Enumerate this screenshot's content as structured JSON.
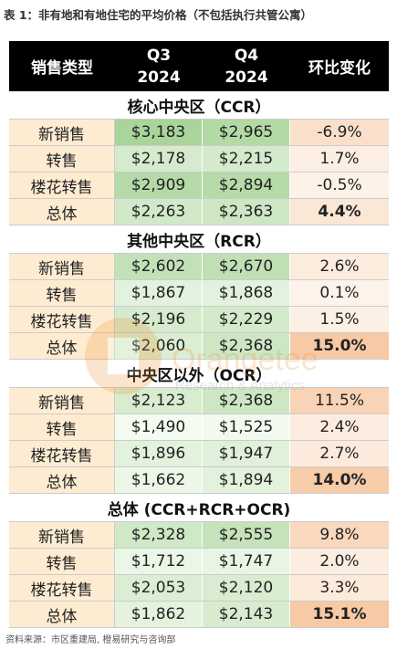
{
  "title": "表 1：非有地和有地住宅的平均价格（不包括执行共管公寓）",
  "header": {
    "col1": "销售类型",
    "col2": [
      "Q3",
      "2024"
    ],
    "col3": [
      "Q4",
      "2024"
    ],
    "col4": "环比变化"
  },
  "sections": [
    {
      "title": "核心中央区（CCR）",
      "rows": [
        {
          "type": "新销售",
          "q3": "$3,183",
          "q4": "$2,965",
          "change": "-6.9%",
          "bold": false
        },
        {
          "type": "转售",
          "q3": "$2,178",
          "q4": "$2,215",
          "change": "1.7%",
          "bold": false
        },
        {
          "type": "楼花转售",
          "q3": "$2,909",
          "q4": "$2,894",
          "change": "-0.5%",
          "bold": false
        },
        {
          "type": "总体",
          "q3": "$2,263",
          "q4": "$2,363",
          "change": "4.4%",
          "bold": true
        }
      ]
    },
    {
      "title": "其他中央区（RCR）",
      "rows": [
        {
          "type": "新销售",
          "q3": "$2,602",
          "q4": "$2,670",
          "change": "2.6%",
          "bold": false
        },
        {
          "type": "转售",
          "q3": "$1,867",
          "q4": "$1,868",
          "change": "0.1%",
          "bold": false
        },
        {
          "type": "楼花转售",
          "q3": "$2,196",
          "q4": "$2,229",
          "change": "1.5%",
          "bold": false
        },
        {
          "type": "总体",
          "q3": "$2,060",
          "q4": "$2,368",
          "change": "15.0%",
          "bold": true
        }
      ]
    },
    {
      "title": "中央区以外（OCR）",
      "rows": [
        {
          "type": "新销售",
          "q3": "$2,123",
          "q4": "$2,368",
          "change": "11.5%",
          "bold": false
        },
        {
          "type": "转售",
          "q3": "$1,490",
          "q4": "$1,525",
          "change": "2.4%",
          "bold": false
        },
        {
          "type": "楼花转售",
          "q3": "$1,896",
          "q4": "$1,947",
          "change": "2.7%",
          "bold": false
        },
        {
          "type": "总体",
          "q3": "$1,662",
          "q4": "$1,894",
          "change": "14.0%",
          "bold": true
        }
      ]
    },
    {
      "title": "总体 (CCR+RCR+OCR)",
      "rows": [
        {
          "type": "新销售",
          "q3": "$2,328",
          "q4": "$2,555",
          "change": "9.8%",
          "bold": false
        },
        {
          "type": "转售",
          "q3": "$1,712",
          "q4": "$1,747",
          "change": "2.0%",
          "bold": false
        },
        {
          "type": "楼花转售",
          "q3": "$2,053",
          "q4": "$2,120",
          "change": "3.3%",
          "bold": false
        },
        {
          "type": "总体",
          "q3": "$1,862",
          "q4": "$2,143",
          "change": "15.1%",
          "bold": true
        }
      ]
    }
  ],
  "watermark": {
    "brand": "Orangetee",
    "tagline": "Research & Analytics"
  },
  "source": "资料来源：市区重建局, 橙易研究与咨询部",
  "colors": {
    "header_bg": "#000000",
    "type_cell_bg": "#fdecd2",
    "price_low": "#f4fbf1",
    "price_high": "#a9d49a",
    "change_low": "#fdf3ea",
    "change_high": "#f7c9a4"
  }
}
